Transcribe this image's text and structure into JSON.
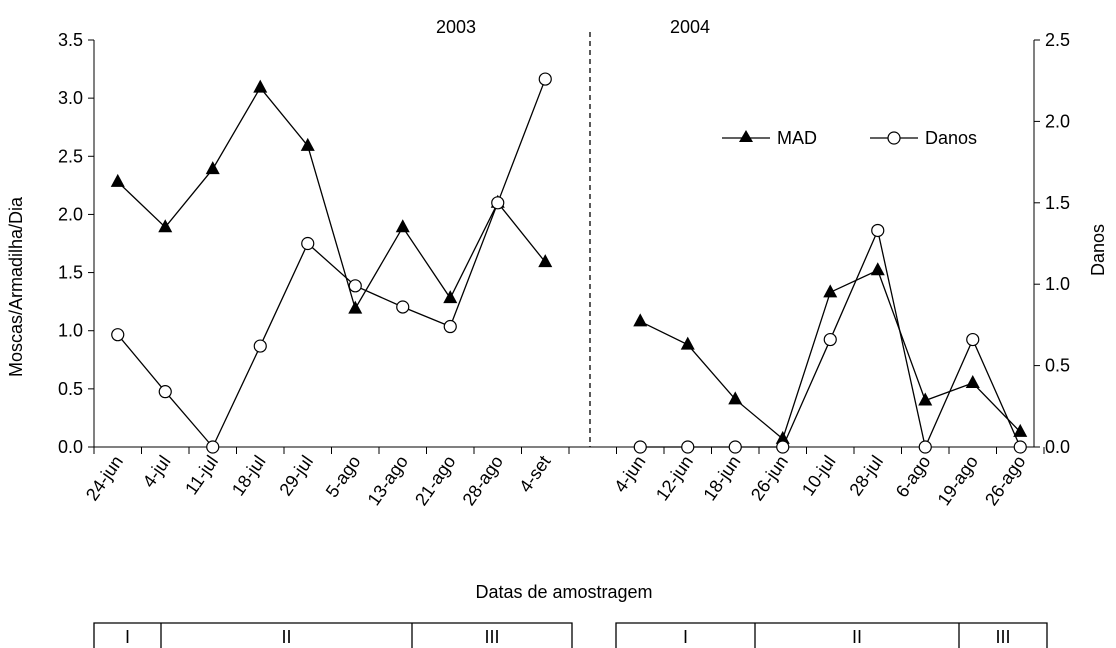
{
  "chart_data": {
    "type": "line",
    "xlabel": "Datas de amostragem",
    "ylabel_left": "Moscas/Armadilha/Dia",
    "ylabel_right": "Danos",
    "ylim_left": [
      0,
      3.5
    ],
    "yticks_left": [
      "0.0",
      "0.5",
      "1.0",
      "1.5",
      "2.0",
      "2.5",
      "3.0",
      "3.5"
    ],
    "ylim_right": [
      0,
      2.5
    ],
    "yticks_right": [
      "0.0",
      "0.5",
      "1.0",
      "1.5",
      "2.0",
      "2.5"
    ],
    "legend": [
      "MAD",
      "Danos"
    ],
    "panels": [
      {
        "year": "2003",
        "categories": [
          "24-jun",
          "4-jul",
          "11-jul",
          "18-jul",
          "29-jul",
          "5-ago",
          "13-ago",
          "21-ago",
          "28-ago",
          "4-set"
        ],
        "series": [
          {
            "name": "MAD",
            "axis": "left",
            "marker": "triangle",
            "values": [
              2.28,
              1.89,
              2.39,
              3.09,
              2.59,
              1.19,
              1.89,
              1.28,
              2.1,
              1.59
            ]
          },
          {
            "name": "Danos",
            "axis": "right",
            "marker": "circle",
            "values": [
              0.69,
              0.34,
              0.0,
              0.62,
              1.25,
              0.99,
              0.86,
              0.74,
              1.5,
              2.26
            ]
          }
        ]
      },
      {
        "year": "2004",
        "categories": [
          "4-jun",
          "12-jun",
          "18-jun",
          "26-jun",
          "10-jul",
          "28-jul",
          "6-ago",
          "19-ago",
          "26-ago"
        ],
        "series": [
          {
            "name": "MAD",
            "axis": "left",
            "marker": "triangle",
            "values": [
              1.08,
              0.88,
              0.41,
              0.07,
              1.33,
              1.52,
              0.4,
              0.55,
              0.13
            ]
          },
          {
            "name": "Danos",
            "axis": "right",
            "marker": "circle",
            "values": [
              0.0,
              0.0,
              0.0,
              0.0,
              0.66,
              1.33,
              0.0,
              0.66,
              0.0
            ]
          }
        ]
      }
    ],
    "phases": [
      {
        "year": "2003",
        "labels": [
          "I",
          "II",
          "III"
        ]
      },
      {
        "year": "2004",
        "labels": [
          "I",
          "II",
          "III"
        ]
      }
    ]
  }
}
